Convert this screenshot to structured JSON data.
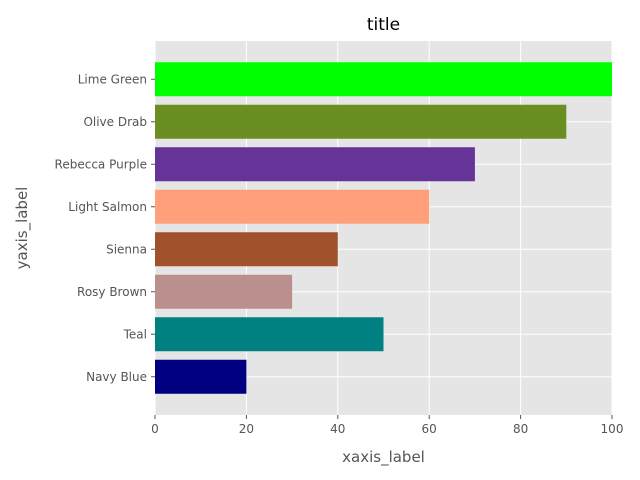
{
  "chart_data": {
    "type": "bar",
    "orientation": "horizontal",
    "title": "title",
    "xlabel": "xaxis_label",
    "ylabel": "yaxis_label",
    "categories": [
      "Navy Blue",
      "Teal",
      "Rosy Brown",
      "Sienna",
      "Light Salmon",
      "Rebecca Purple",
      "Olive Drab",
      "Lime Green"
    ],
    "values": [
      20,
      50,
      30,
      40,
      60,
      70,
      90,
      100
    ],
    "colors": [
      "#000080",
      "#008080",
      "#bc8f8f",
      "#a0522d",
      "#ffa07a",
      "#663399",
      "#6b8e23",
      "#00ff00"
    ],
    "xlim": [
      0,
      100
    ],
    "xticks": [
      "0",
      "20",
      "40",
      "60",
      "80",
      "100"
    ],
    "grid": true,
    "style": "ggplot",
    "background_color": "#e5e5e5",
    "grid_color": "#ffffff"
  }
}
